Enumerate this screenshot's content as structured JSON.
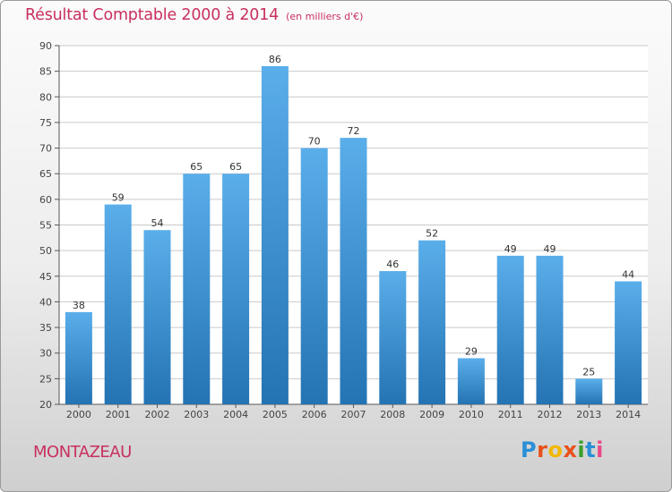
{
  "header": {
    "title": "Résultat Comptable 2000 à 2014",
    "subtitle": "(en milliers d'€)"
  },
  "footer": {
    "commune": "MONTAZEAU",
    "logo_text": "Proxiti",
    "logo_colors": [
      "#2a8fd6",
      "#e8501a",
      "#f2b705",
      "#e8501a",
      "#3a9f2a",
      "#2a8fd6",
      "#e84a8a"
    ]
  },
  "colors": {
    "bar_top": "#5aaeea",
    "bar_bottom": "#2473b3",
    "grid": "#c9c9c9",
    "axis": "#555555",
    "accent": "#c8305e"
  },
  "chart_data": {
    "type": "bar",
    "title": "Résultat Comptable 2000 à 2014",
    "subtitle": "(en milliers d'€)",
    "xlabel": "",
    "ylabel": "",
    "categories": [
      "2000",
      "2001",
      "2002",
      "2003",
      "2004",
      "2005",
      "2006",
      "2007",
      "2008",
      "2009",
      "2010",
      "2011",
      "2012",
      "2013",
      "2014"
    ],
    "values": [
      38,
      59,
      54,
      65,
      65,
      86,
      70,
      72,
      46,
      52,
      29,
      49,
      49,
      25,
      44
    ],
    "ylim": [
      20,
      90
    ],
    "yticks": [
      20,
      25,
      30,
      35,
      40,
      45,
      50,
      55,
      60,
      65,
      70,
      75,
      80,
      85,
      90
    ],
    "grid": true,
    "legend": "none"
  }
}
